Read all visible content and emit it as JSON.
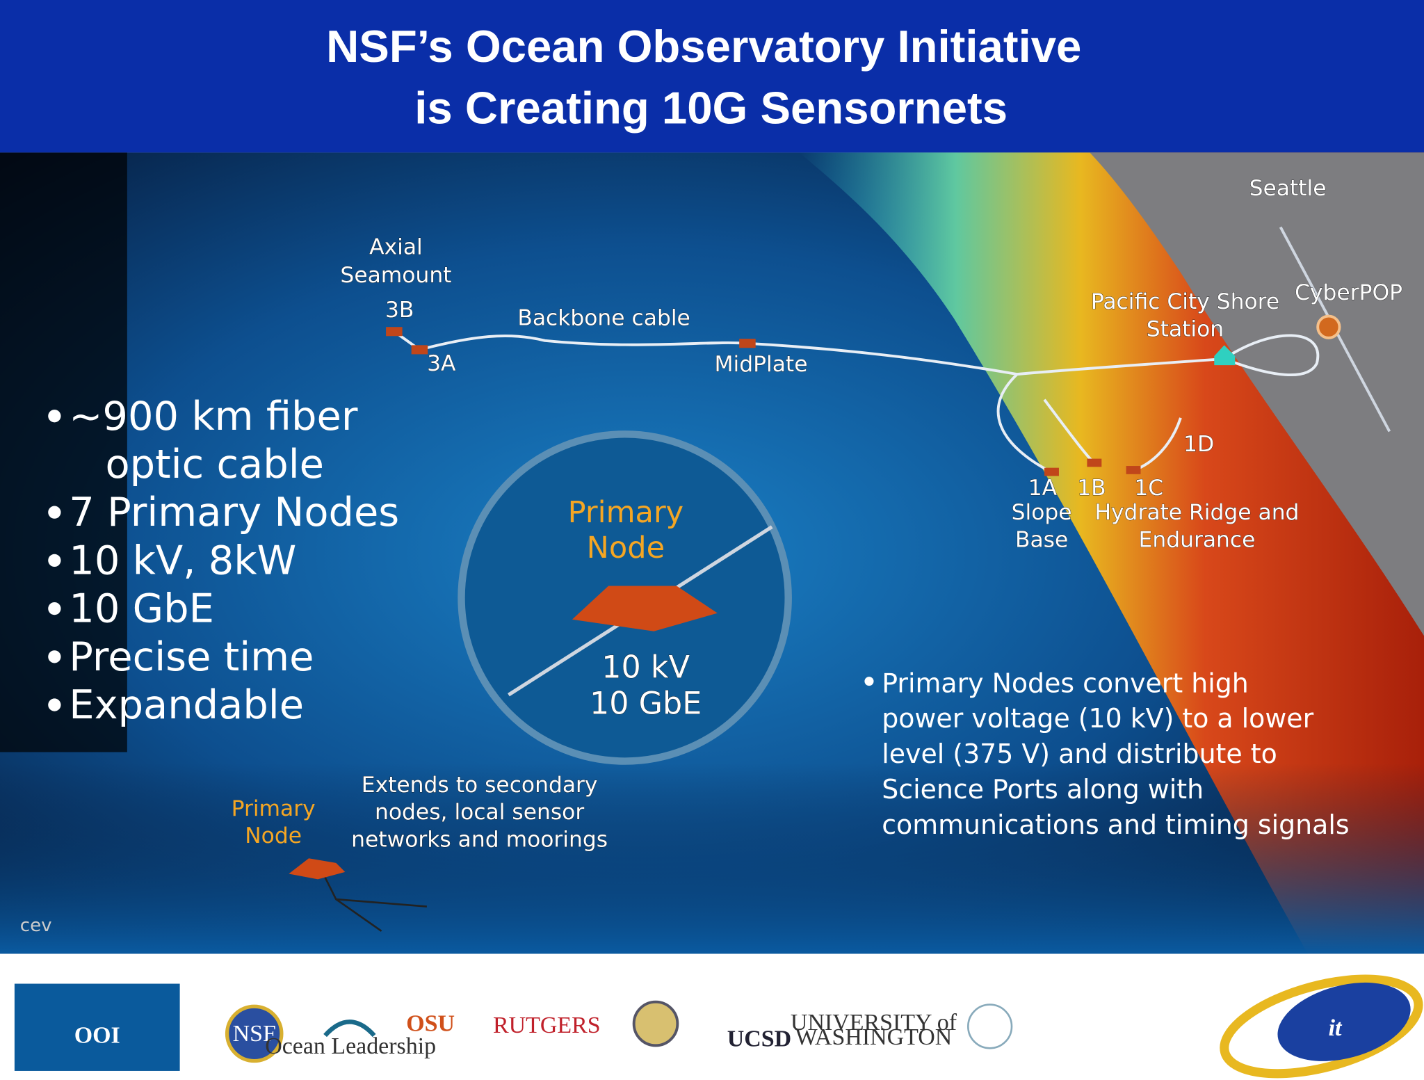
{
  "header": {
    "title_lines": [
      "NSF’s Ocean Observatory Initiative",
      "is Creating 10G Sensornets"
    ]
  },
  "map": {
    "seattle": "Seattle",
    "axial_seamount": [
      "Axial",
      "Seamount"
    ],
    "node_3b": "3B",
    "node_3a": "3A",
    "backbone_cable": "Backbone cable",
    "midplate": "MidPlate",
    "shore_station": [
      "Pacific City Shore",
      "Station"
    ],
    "cyberpop": "CyberPOP",
    "node_1d": "1D",
    "node_1a": "1A",
    "node_1b": "1B",
    "node_1c": "1C",
    "slope_base": [
      "Slope",
      "Base"
    ],
    "hydrate_ridge": [
      "Hydrate Ridge and",
      "Endurance"
    ],
    "inset": {
      "title": [
        "Primary",
        "Node"
      ],
      "specs": [
        "10 kV",
        "10 GbE"
      ]
    },
    "secondary_note": [
      "Extends to secondary",
      "nodes, local sensor",
      "networks and moorings"
    ],
    "primary_node_label": [
      "Primary",
      "Node"
    ],
    "credit": "cev"
  },
  "left_bullets": [
    [
      "~900 km fiber",
      "optic cable"
    ],
    [
      "7 Primary Nodes"
    ],
    [
      "10 kV, 8kW"
    ],
    [
      "10 GbE"
    ],
    [
      "Precise time"
    ],
    [
      "Expandable"
    ]
  ],
  "right_bullet": [
    "Primary Nodes convert high",
    "power voltage (10 kV) to a lower",
    "level (375 V) and distribute to",
    "Science Ports along with",
    "communications and timing signals"
  ],
  "footer_logos": {
    "ooi": "OOI",
    "nsf": "NSF",
    "ocean_leadership": "Ocean Leadership",
    "osu": "OSU",
    "rutgers": "RUTGERS",
    "ucsd": "UCSD",
    "uw": [
      "UNIVERSITY of",
      "WASHINGTON"
    ],
    "it2": "it"
  }
}
